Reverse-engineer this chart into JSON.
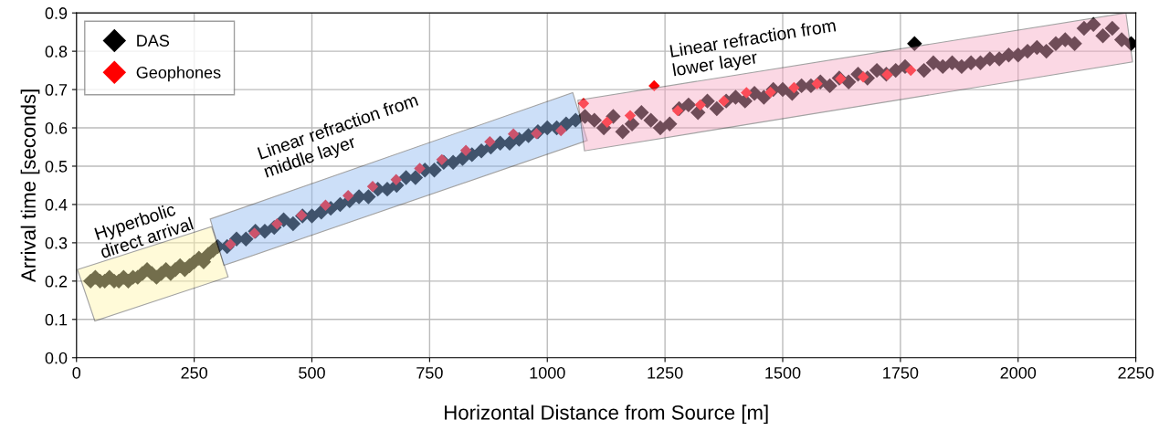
{
  "chart_data": {
    "type": "scatter",
    "xlabel": "Horizontal Distance from Source [m]",
    "ylabel": "Arrival time [seconds]",
    "xlim": [
      0,
      2250
    ],
    "ylim": [
      0,
      0.9
    ],
    "xticks": [
      0,
      250,
      500,
      750,
      1000,
      1250,
      1500,
      1750,
      2000,
      2250
    ],
    "yticks": [
      {
        "value": 0,
        "label": "0.0"
      },
      0.1,
      0.2,
      0.3,
      0.4,
      0.5,
      0.6,
      0.7,
      0.8,
      0.9
    ],
    "grid": true,
    "legend": "top left",
    "marker": "diamond",
    "annotations": [
      "Hyperbolic\ndirect arrival",
      "Linear refraction from\nmiddle layer",
      "Linear refraction from\nlower layer"
    ],
    "series": [
      {
        "name": "DAS",
        "color": "#000000",
        "x": [
          30,
          40,
          50,
          60,
          70,
          80,
          90,
          100,
          110,
          120,
          130,
          140,
          150,
          160,
          170,
          180,
          190,
          200,
          210,
          220,
          230,
          240,
          250,
          260,
          270,
          280,
          290,
          300,
          320,
          340,
          360,
          380,
          400,
          420,
          440,
          460,
          480,
          500,
          520,
          540,
          560,
          580,
          600,
          620,
          640,
          660,
          680,
          700,
          720,
          740,
          760,
          780,
          800,
          820,
          840,
          860,
          880,
          900,
          920,
          940,
          960,
          980,
          1000,
          1020,
          1040,
          1060,
          1080,
          1100,
          1120,
          1140,
          1160,
          1180,
          1200,
          1220,
          1240,
          1260,
          1280,
          1300,
          1320,
          1340,
          1360,
          1380,
          1400,
          1420,
          1440,
          1460,
          1480,
          1500,
          1520,
          1540,
          1560,
          1580,
          1600,
          1620,
          1640,
          1660,
          1680,
          1700,
          1720,
          1740,
          1760,
          1780,
          1800,
          1820,
          1840,
          1860,
          1880,
          1900,
          1920,
          1940,
          1960,
          1980,
          2000,
          2020,
          2040,
          2060,
          2080,
          2100,
          2120,
          2140,
          2160,
          2180,
          2200,
          2220,
          2240
        ],
        "values": [
          0.2,
          0.21,
          0.2,
          0.2,
          0.21,
          0.2,
          0.2,
          0.21,
          0.2,
          0.21,
          0.21,
          0.22,
          0.23,
          0.22,
          0.21,
          0.22,
          0.23,
          0.22,
          0.23,
          0.24,
          0.23,
          0.24,
          0.25,
          0.26,
          0.25,
          0.27,
          0.28,
          0.29,
          0.29,
          0.31,
          0.31,
          0.33,
          0.33,
          0.34,
          0.36,
          0.35,
          0.37,
          0.37,
          0.38,
          0.39,
          0.4,
          0.41,
          0.42,
          0.42,
          0.44,
          0.44,
          0.45,
          0.47,
          0.47,
          0.49,
          0.49,
          0.51,
          0.51,
          0.52,
          0.53,
          0.54,
          0.55,
          0.56,
          0.56,
          0.57,
          0.58,
          0.59,
          0.6,
          0.6,
          0.61,
          0.62,
          0.63,
          0.62,
          0.6,
          0.63,
          0.59,
          0.61,
          0.64,
          0.62,
          0.6,
          0.61,
          0.65,
          0.66,
          0.64,
          0.67,
          0.65,
          0.67,
          0.68,
          0.67,
          0.69,
          0.68,
          0.7,
          0.7,
          0.69,
          0.71,
          0.71,
          0.72,
          0.71,
          0.73,
          0.72,
          0.74,
          0.73,
          0.75,
          0.74,
          0.75,
          0.76,
          0.82,
          0.75,
          0.77,
          0.76,
          0.77,
          0.76,
          0.77,
          0.77,
          0.78,
          0.78,
          0.79,
          0.79,
          0.8,
          0.81,
          0.8,
          0.82,
          0.83,
          0.82,
          0.86,
          0.87,
          0.84,
          0.86,
          0.83,
          0.82
        ]
      },
      {
        "name": "Geophones",
        "color": "#ff0000",
        "x": [
          327,
          378,
          426,
          478,
          529,
          577,
          629,
          679,
          729,
          776,
          827,
          878,
          928,
          977,
          1029,
          1077,
          1127,
          1176,
          1227,
          1277,
          1325,
          1375,
          1423,
          1474,
          1524,
          1573,
          1623,
          1671,
          1722,
          1772
        ],
        "values": [
          0.296,
          0.325,
          0.349,
          0.372,
          0.398,
          0.423,
          0.447,
          0.465,
          0.494,
          0.517,
          0.541,
          0.564,
          0.584,
          0.585,
          0.593,
          0.664,
          0.615,
          0.632,
          0.71,
          0.645,
          0.66,
          0.67,
          0.692,
          0.693,
          0.705,
          0.715,
          0.728,
          0.733,
          0.739,
          0.75
        ]
      }
    ]
  }
}
